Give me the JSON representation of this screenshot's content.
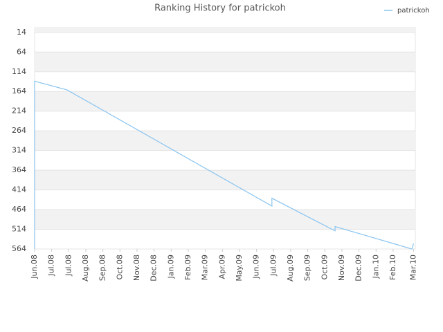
{
  "chart_data": {
    "type": "line",
    "title": "Ranking History for patrickoh",
    "x": [
      0,
      0,
      1.9,
      13.9,
      13.9,
      17.6,
      17.6,
      22.1,
      22.2
    ],
    "series": [
      {
        "name": "patrickoh",
        "color": "#88c4f0",
        "values": [
          564,
          138,
          160,
          455,
          435,
          518,
          507,
          564,
          550
        ]
      }
    ],
    "xlim": [
      0,
      22.3
    ],
    "xticks": [
      {
        "value": 0,
        "label": "Jun.08"
      },
      {
        "value": 1,
        "label": "Jul.08"
      },
      {
        "value": 2,
        "label": "Jul.08"
      },
      {
        "value": 3,
        "label": "Aug.08"
      },
      {
        "value": 4,
        "label": "Sep.08"
      },
      {
        "value": 5,
        "label": "Oct.08"
      },
      {
        "value": 6,
        "label": "Nov.08"
      },
      {
        "value": 7,
        "label": "Dec.08"
      },
      {
        "value": 8,
        "label": "Jan.09"
      },
      {
        "value": 9,
        "label": "Feb.09"
      },
      {
        "value": 10,
        "label": "Mar.09"
      },
      {
        "value": 11,
        "label": "Apr.09"
      },
      {
        "value": 12,
        "label": "May.09"
      },
      {
        "value": 13,
        "label": "Jun.09"
      },
      {
        "value": 14,
        "label": "Jul.09"
      },
      {
        "value": 15,
        "label": "Aug.09"
      },
      {
        "value": 16,
        "label": "Sep.09"
      },
      {
        "value": 17,
        "label": "Oct.09"
      },
      {
        "value": 18,
        "label": "Nov.09"
      },
      {
        "value": 19,
        "label": "Dec.09"
      },
      {
        "value": 20,
        "label": "Jan.10"
      },
      {
        "value": 21,
        "label": "Feb.10"
      },
      {
        "value": 22.2,
        "label": "Mar.10"
      }
    ],
    "ylim": [
      564,
      2
    ],
    "yticks": [
      14,
      64,
      114,
      164,
      214,
      264,
      314,
      364,
      414,
      464,
      514,
      564
    ],
    "grid": true,
    "legend": "top-right"
  }
}
